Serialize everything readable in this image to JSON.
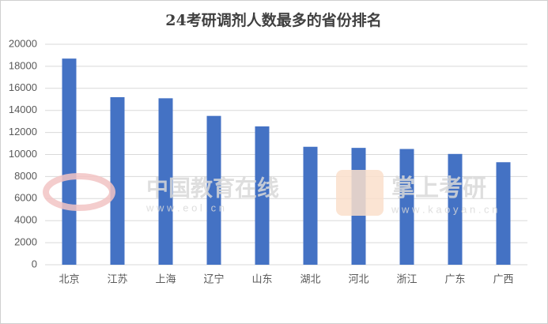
{
  "chart_data": {
    "type": "bar",
    "title": "24考研调剂人数最多的省份排名",
    "categories": [
      "北京",
      "江苏",
      "上海",
      "辽宁",
      "山东",
      "湖北",
      "河北",
      "浙江",
      "广东",
      "广西"
    ],
    "values": [
      18700,
      15200,
      15100,
      13500,
      12550,
      10700,
      10600,
      10500,
      10050,
      9300
    ],
    "color": "#4472c4",
    "ylim": [
      0,
      20000
    ],
    "yticks": [
      0,
      2000,
      4000,
      6000,
      8000,
      10000,
      12000,
      14000,
      16000,
      18000,
      20000
    ],
    "grid": true
  },
  "watermarks": [
    {
      "name": "中国教育在线",
      "url": "w w w . e o l . c n"
    },
    {
      "name": "掌上考研",
      "url": "w w w . k a o y a n . c n"
    }
  ]
}
